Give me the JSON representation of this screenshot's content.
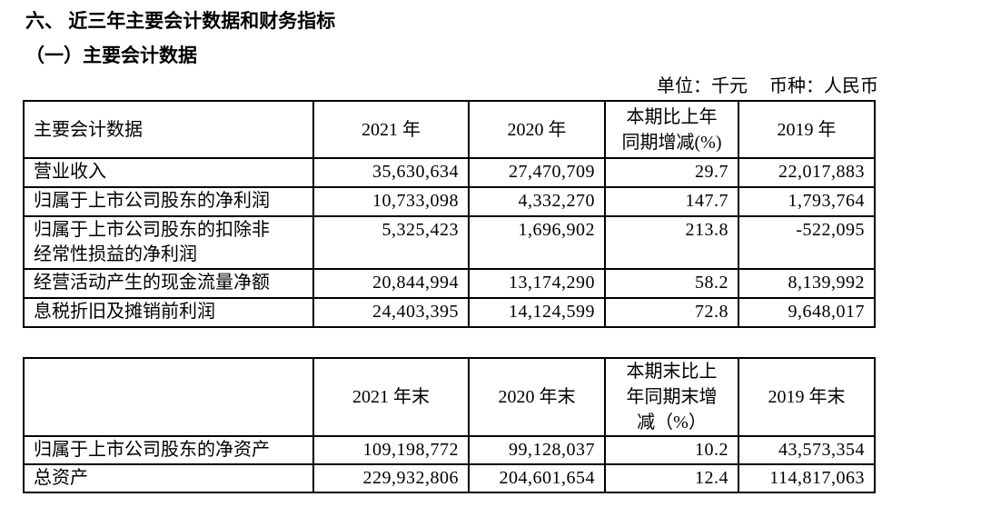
{
  "document": {
    "section_title": "六、 近三年主要会计数据和财务指标",
    "subsection_title": "（一）主要会计数据",
    "unit_note": "单位：千元",
    "currency_note": "币种：人民币"
  },
  "main_table": {
    "headers": {
      "metric": "主要会计数据",
      "y2021": "2021 年",
      "y2020": "2020 年",
      "change_line1": "本期比上年",
      "change_line2": "同期增减(%)",
      "y2019": "2019 年"
    },
    "rows": [
      {
        "metric": "营业收入",
        "y2021": "35,630,634",
        "y2020": "27,470,709",
        "change": "29.7",
        "y2019": "22,017,883"
      },
      {
        "metric": "归属于上市公司股东的净利润",
        "y2021": "10,733,098",
        "y2020": "4,332,270",
        "change": "147.7",
        "y2019": "1,793,764"
      },
      {
        "metric": "归属于上市公司股东的扣除非经常性损益的净利润",
        "y2021": "5,325,423",
        "y2020": "1,696,902",
        "change": "213.8",
        "y2019": "-522,095"
      },
      {
        "metric": "经营活动产生的现金流量净额",
        "y2021": "20,844,994",
        "y2020": "13,174,290",
        "change": "58.2",
        "y2019": "8,139,992"
      },
      {
        "metric": "息税折旧及摊销前利润",
        "y2021": "24,403,395",
        "y2020": "14,124,599",
        "change": "72.8",
        "y2019": "9,648,017"
      }
    ]
  },
  "yearend_table": {
    "headers": {
      "metric": "",
      "y2021": "2021 年末",
      "y2020": "2020 年末",
      "change_line1": "本期末比上",
      "change_line2": "年同期末增",
      "change_line3": "减（%）",
      "y2019": "2019 年末"
    },
    "rows": [
      {
        "metric": "归属于上市公司股东的净资产",
        "y2021": "109,198,772",
        "y2020": "99,128,037",
        "change": "10.2",
        "y2019": "43,573,354"
      },
      {
        "metric": "总资产",
        "y2021": "229,932,806",
        "y2020": "204,601,654",
        "change": "12.4",
        "y2019": "114,817,063"
      }
    ]
  }
}
